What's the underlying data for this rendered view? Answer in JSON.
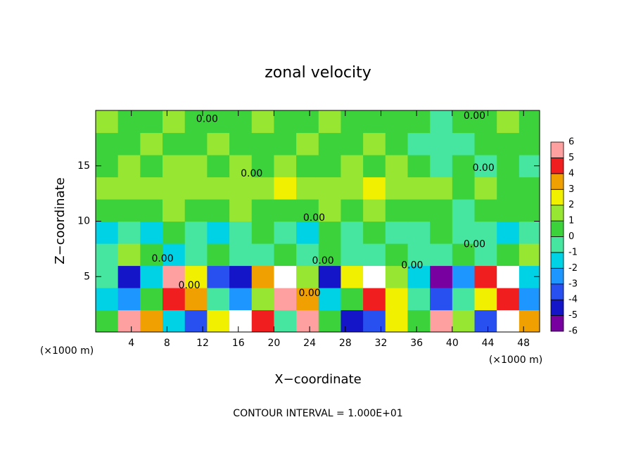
{
  "chart_data": {
    "type": "contour",
    "title": "zonal velocity",
    "xlabel": "X−coordinate",
    "ylabel": "Z−coordinate",
    "x_unit_labels": [
      "(×1000 m)",
      "(×1000 m)"
    ],
    "footer": "CONTOUR INTERVAL = 1.000E+01",
    "xlim": [
      0,
      49.8
    ],
    "ylim": [
      0,
      20
    ],
    "xticks": [
      4,
      8,
      12,
      16,
      20,
      24,
      28,
      32,
      36,
      40,
      44,
      48
    ],
    "yticks": [
      5,
      10,
      15
    ],
    "x": [
      1.25,
      3.75,
      6.25,
      8.75,
      11.25,
      13.75,
      16.25,
      18.75,
      21.25,
      23.75,
      26.25,
      28.75,
      31.25,
      33.75,
      36.25,
      38.75,
      41.25,
      43.75,
      46.25,
      48.75
    ],
    "y": [
      1,
      3,
      5,
      7,
      9,
      11,
      13,
      15,
      17,
      19
    ],
    "z": [
      [
        0,
        5,
        3,
        -2,
        -4,
        2,
        6,
        4,
        -1,
        5,
        0,
        -5,
        -4,
        2,
        0,
        5,
        1,
        -4,
        6,
        3
      ],
      [
        -2,
        -3,
        0,
        4,
        3,
        -1,
        -3,
        1,
        5,
        3,
        -2,
        0,
        4,
        2,
        -1,
        -4,
        -1,
        2,
        4,
        -3
      ],
      [
        -1,
        -5,
        -2,
        5,
        2,
        -4,
        -5,
        3,
        6,
        1,
        -5,
        2,
        6,
        1,
        -2,
        -6,
        -3,
        4,
        6,
        -2
      ],
      [
        -1,
        1,
        0,
        -2,
        -1,
        0,
        -1,
        -1,
        0,
        -1,
        0,
        -1,
        -1,
        0,
        -1,
        -1,
        0,
        -1,
        0,
        1
      ],
      [
        -2,
        -1,
        -2,
        0,
        -1,
        -2,
        -1,
        0,
        -1,
        -2,
        0,
        -1,
        0,
        -1,
        -1,
        0,
        -1,
        -1,
        -2,
        -1
      ],
      [
        0,
        0,
        0,
        1,
        0,
        0,
        1,
        0,
        0,
        0,
        1,
        0,
        1,
        0,
        0,
        0,
        -1,
        0,
        0,
        0
      ],
      [
        1,
        1,
        1,
        1,
        1,
        1,
        1,
        1,
        2,
        1,
        1,
        1,
        2,
        1,
        1,
        1,
        0,
        1,
        0,
        0
      ],
      [
        0,
        1,
        0,
        1,
        1,
        0,
        1,
        0,
        1,
        0,
        0,
        1,
        0,
        1,
        0,
        -1,
        0,
        -1,
        0,
        -1
      ],
      [
        0,
        0,
        1,
        0,
        0,
        1,
        0,
        0,
        0,
        1,
        0,
        0,
        1,
        0,
        -1,
        -1,
        -1,
        0,
        0,
        0
      ],
      [
        1,
        0,
        0,
        1,
        0,
        0,
        0,
        1,
        0,
        0,
        1,
        0,
        0,
        0,
        0,
        -1,
        0,
        0,
        1,
        0
      ]
    ],
    "levels": [
      -6,
      -5,
      -4,
      -3,
      -2,
      -1,
      0,
      1,
      2,
      3,
      4,
      5,
      6
    ],
    "colors": [
      "#7800a0",
      "#1414c8",
      "#2850f0",
      "#1e96ff",
      "#00d2e6",
      "#46e6a0",
      "#3cd23c",
      "#96e632",
      "#f0f000",
      "#f0a000",
      "#f01e1e",
      "#ffa0a0"
    ],
    "out_of_range_color": "#ffffff",
    "contour_labels": [
      {
        "text": "0.00",
        "x": 12.5,
        "y": 19.2
      },
      {
        "text": "0.00",
        "x": 17.5,
        "y": 14.3
      },
      {
        "text": "0.00",
        "x": 24.5,
        "y": 10.3
      },
      {
        "text": "0.00",
        "x": 42.5,
        "y": 19.5
      },
      {
        "text": "0.00",
        "x": 43.5,
        "y": 14.8
      },
      {
        "text": "0.00",
        "x": 42.5,
        "y": 7.9
      },
      {
        "text": "0.00",
        "x": 7.5,
        "y": 6.6
      },
      {
        "text": "0.00",
        "x": 25.5,
        "y": 6.4
      },
      {
        "text": "0.00",
        "x": 35.5,
        "y": 6.0
      },
      {
        "text": "0.00",
        "x": 10.5,
        "y": 4.2
      },
      {
        "text": "0.00",
        "x": 24.0,
        "y": 3.5
      }
    ]
  }
}
